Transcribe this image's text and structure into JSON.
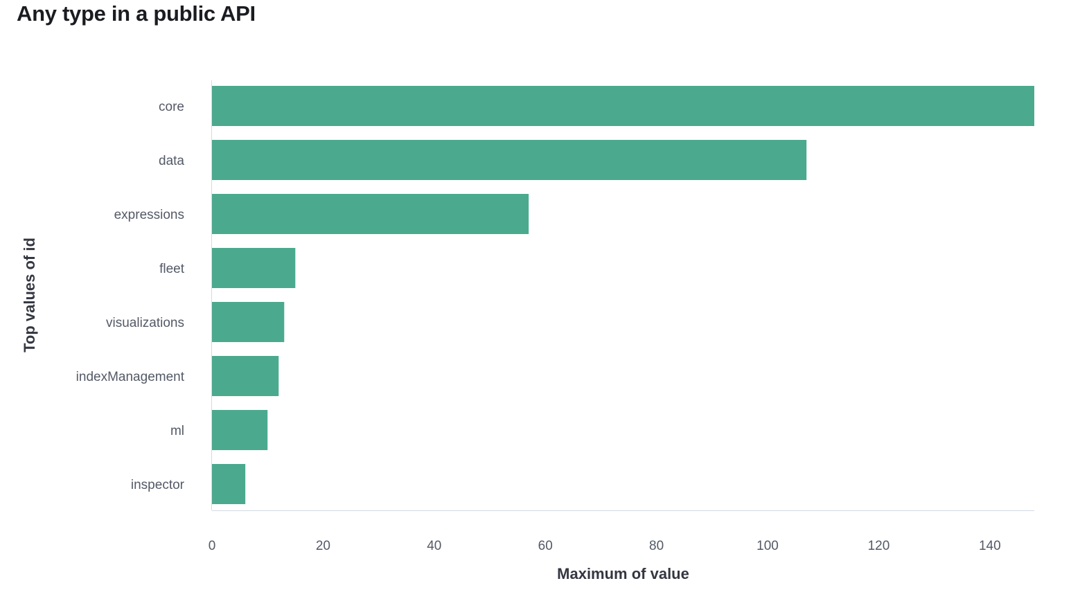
{
  "page": {
    "title": "Any type in a public API"
  },
  "chart_data": {
    "type": "bar",
    "orientation": "horizontal",
    "categories": [
      "core",
      "data",
      "expressions",
      "fleet",
      "visualizations",
      "indexManagement",
      "ml",
      "inspector"
    ],
    "values": [
      148,
      107,
      57,
      15,
      13,
      12,
      10,
      6
    ],
    "xlabel": "Maximum of value",
    "ylabel": "Top values of id",
    "xlim": [
      0,
      148
    ],
    "xticks": [
      0,
      20,
      40,
      60,
      80,
      100,
      120,
      140
    ],
    "bar_color": "#4ba98e",
    "grid": false,
    "legend": "none"
  }
}
